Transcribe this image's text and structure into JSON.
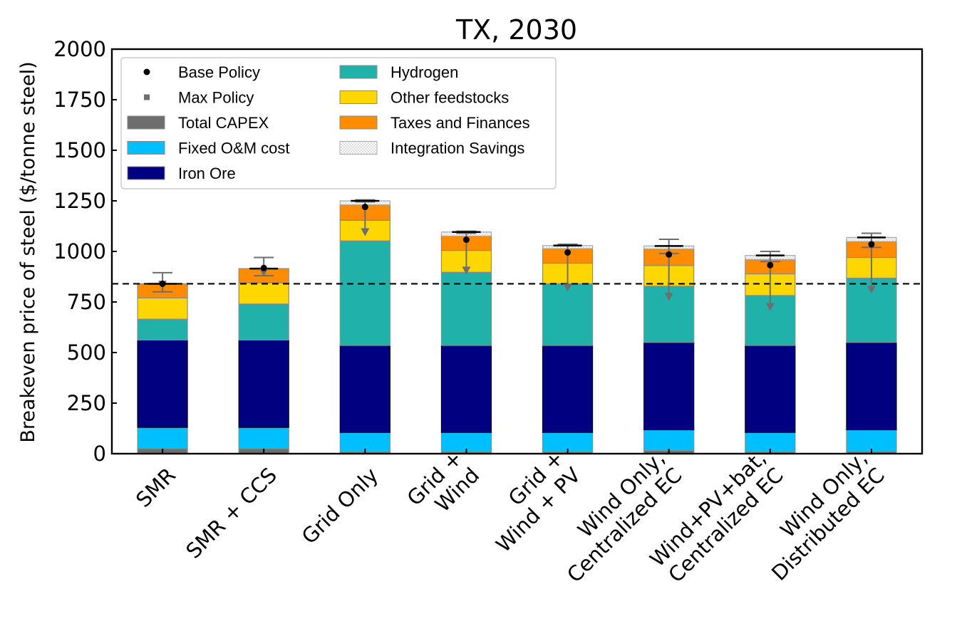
{
  "chart_data": {
    "type": "bar",
    "stacked": true,
    "title": "TX, 2030",
    "ylabel": "Breakeven price of steel ($/tonne steel)",
    "xlabel": "",
    "ylim": [
      0,
      2000
    ],
    "yticks": [
      0,
      250,
      500,
      750,
      1000,
      1250,
      1500,
      1750,
      2000
    ],
    "grid": false,
    "legend_position": "top-left",
    "reference_line": {
      "y": 840,
      "style": "dashed",
      "color": "#000000"
    },
    "categories": [
      "SMR",
      "SMR + CCS",
      "Grid Only",
      "Grid +\nWind",
      "Grid +\nWind + PV",
      "Wind Only,\nCentralized EC",
      "Wind+PV+bat,\nCentralized EC",
      "Wind Only,\nDistributed EC"
    ],
    "series": [
      {
        "name": "Total CAPEX",
        "color": "#6e6e6e",
        "values": [
          25,
          25,
          8,
          8,
          8,
          15,
          8,
          10
        ]
      },
      {
        "name": "Fixed O&M cost",
        "color": "#00bfff",
        "values": [
          105,
          105,
          97,
          97,
          97,
          103,
          97,
          108
        ]
      },
      {
        "name": "Iron Ore",
        "color": "#000080",
        "values": [
          432,
          432,
          430,
          430,
          430,
          432,
          430,
          432
        ]
      },
      {
        "name": "Hydrogen",
        "color": "#20b2aa",
        "values": [
          103,
          178,
          517,
          362,
          305,
          278,
          247,
          318
        ]
      },
      {
        "name": "Other feedstocks",
        "color": "#ffd700",
        "values": [
          105,
          105,
          102,
          108,
          102,
          102,
          107,
          102
        ]
      },
      {
        "name": "Taxes and Finances",
        "color": "#ff8c00",
        "values": [
          70,
          70,
          76,
          71,
          72,
          82,
          71,
          79
        ]
      },
      {
        "name": "Integration Savings",
        "color": "#d9d9d9",
        "hatch": true,
        "values": [
          0,
          0,
          20,
          20,
          15,
          15,
          20,
          20
        ]
      }
    ],
    "base_policy": [
      840,
      918,
      1220,
      1058,
      995,
      985,
      932,
      1035
    ],
    "base_policy_error_low": [
      800,
      880,
      1245,
      1090,
      1030,
      990,
      950,
      1020
    ],
    "base_policy_error_high": [
      895,
      970,
      1255,
      1100,
      1035,
      1060,
      1000,
      1090
    ],
    "max_policy": [
      830,
      890,
      1090,
      900,
      815,
      770,
      720,
      805
    ],
    "legend": {
      "base_policy_label": "Base Policy",
      "max_policy_label": "Max Policy"
    },
    "colors": {
      "base_policy_marker": "#000000",
      "max_policy_marker": "#6e6e6e",
      "error_bar": "#6e6e6e"
    }
  }
}
